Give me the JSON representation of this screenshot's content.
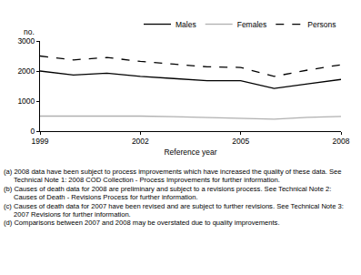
{
  "chart_data": {
    "type": "line",
    "x": [
      1999,
      2000,
      2001,
      2002,
      2003,
      2004,
      2005,
      2006,
      2007,
      2008
    ],
    "series": [
      {
        "name": "Males",
        "color": "#000000",
        "line_style": "solid",
        "values": [
          2000,
          1870,
          1930,
          1820,
          1750,
          1680,
          1680,
          1420,
          1570,
          1720
        ]
      },
      {
        "name": "Females",
        "color": "#b0b0b0",
        "line_style": "solid",
        "values": [
          500,
          500,
          520,
          500,
          480,
          460,
          440,
          400,
          460,
          490
        ]
      },
      {
        "name": "Persons",
        "color": "#000000",
        "line_style": "dash",
        "values": [
          2500,
          2370,
          2450,
          2320,
          2230,
          2140,
          2120,
          1820,
          2030,
          2210
        ]
      }
    ],
    "xlabel": "Reference year",
    "ylabel": "no.",
    "xlim": [
      1999,
      2008
    ],
    "ylim": [
      0,
      3000
    ],
    "xticks": [
      1999,
      2002,
      2005,
      2008
    ],
    "yticks": [
      0,
      1000,
      2000,
      3000
    ],
    "grid": false,
    "legend": "top right",
    "notes": [
      "(a) 2008 data have been subject to process improvements which have increased the quality of these data. See Technical Note 1: 2008 COD Collection - Process Improvements for further information.",
      "(b) Causes of death data for 2008 are preliminary and subject to a revisions process. See Technical Note 2: Causes of Death - Revisions Process for further information.",
      "(c) Causes of death data for 2007 have been revised and are subject to further revisions. See Technical Note 3: 2007 Revisions for further information.",
      "(d) Comparisons between 2007 and 2008 may be overstated due to quality improvements."
    ]
  }
}
